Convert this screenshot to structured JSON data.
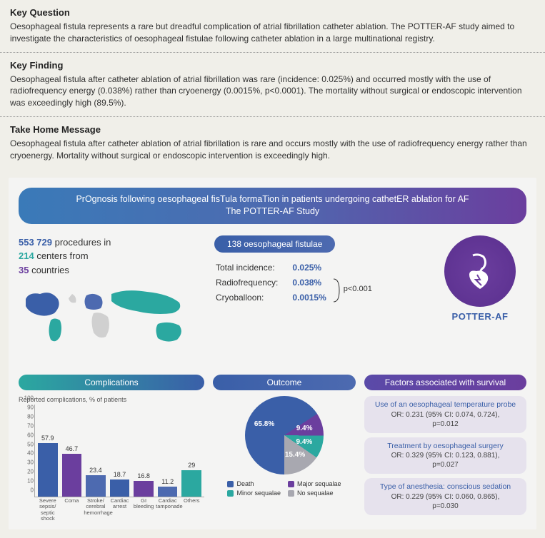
{
  "key_question": {
    "title": "Key Question",
    "text": "Oesophageal fistula represents a rare but dreadful complication of atrial fibrillation catheter ablation. The POTTER-AF study aimed to investigate the characteristics of oesophageal fistulae following catheter ablation in a large multinational registry."
  },
  "key_finding": {
    "title": "Key Finding",
    "text": "Oesophageal fistula after catheter ablation of atrial fibrillation was rare (incidence: 0.025%) and occurred mostly with the use of radiofrequency energy (0.038%) rather than cryoenergy (0.0015%, p<0.0001). The mortality without surgical or endoscopic intervention was exceedingly high (89.5%)."
  },
  "take_home": {
    "title": "Take Home Message",
    "text": "Oesophageal fistula after catheter ablation of atrial fibrillation is rare and occurs mostly with the use of radiofrequency energy rather than cryoenergy. Mortality without surgical or endoscopic intervention is exceedingly high."
  },
  "banner": {
    "line1": "PrOgnosis following oesophageal fisTula formaTion in patients undergoing cathetER ablation for AF",
    "line2": "The POTTER-AF Study"
  },
  "registry": {
    "procedures": "553 729",
    "procedures_label": " procedures in",
    "centers": "214",
    "centers_label": " centers from",
    "countries": "35",
    "countries_label": " countries"
  },
  "fistulae": {
    "pill": "138 oesophageal fistulae",
    "rows": [
      {
        "label": "Total incidence:",
        "value": "0.025%"
      },
      {
        "label": "Radiofrequency:",
        "value": "0.038%"
      },
      {
        "label": "Cryoballoon:",
        "value": "0.0015%"
      }
    ],
    "pvalue": "p<0.001"
  },
  "logo": "POTTER-AF",
  "complications": {
    "header": "Complications",
    "caption": "Reported complications, % of patients",
    "ylim": [
      0,
      100
    ],
    "ytick_step": 10,
    "bars": [
      {
        "label": "Severe sepsis/\nseptic shock",
        "value": 57.9,
        "color": "#3a5fa8"
      },
      {
        "label": "Coma",
        "value": 46.7,
        "color": "#6b3e9e"
      },
      {
        "label": "Stroke/\ncerebral\nhemorrhage",
        "value": 23.4,
        "color": "#4d6ab0"
      },
      {
        "label": "Cardiac\narrest",
        "value": 18.7,
        "color": "#3a5fa8"
      },
      {
        "label": "GI\nbleeding",
        "value": 16.8,
        "color": "#6b3e9e"
      },
      {
        "label": "Cardiac\ntamponade",
        "value": 11.2,
        "color": "#4d6ab0"
      },
      {
        "label": "Others",
        "value": 29,
        "color": "#2ba8a0"
      }
    ]
  },
  "outcome": {
    "header": "Outcome",
    "slices": [
      {
        "label": "Death",
        "value": 65.8,
        "color": "#3a5fa8"
      },
      {
        "label": "Major sequalae",
        "value": 9.4,
        "color": "#6b3e9e"
      },
      {
        "label": "Minor sequalae",
        "value": 9.4,
        "color": "#2ba8a0"
      },
      {
        "label": "No sequalae",
        "value": 15.4,
        "color": "#a8a8b0"
      }
    ]
  },
  "factors": {
    "header": "Factors associated with survival",
    "items": [
      {
        "title": "Use of an oesophageal temperature probe",
        "stat": "OR: 0.231 (95% CI: 0.074, 0.724),",
        "p": "p=0.012"
      },
      {
        "title": "Treatment by oesophageal surgery",
        "stat": "OR: 0.329 (95% CI: 0.123, 0.881),",
        "p": "p=0.027"
      },
      {
        "title": "Type of anesthesia: conscious sedation",
        "stat": "OR: 0.229 (95% CI: 0.060, 0.865),",
        "p": "p=0.030"
      }
    ]
  },
  "colors": {
    "map_fill": "#d0d0d0",
    "map_highlight1": "#3a5fa8",
    "map_highlight2": "#2ba8a0",
    "map_highlight3": "#6b3e9e"
  }
}
